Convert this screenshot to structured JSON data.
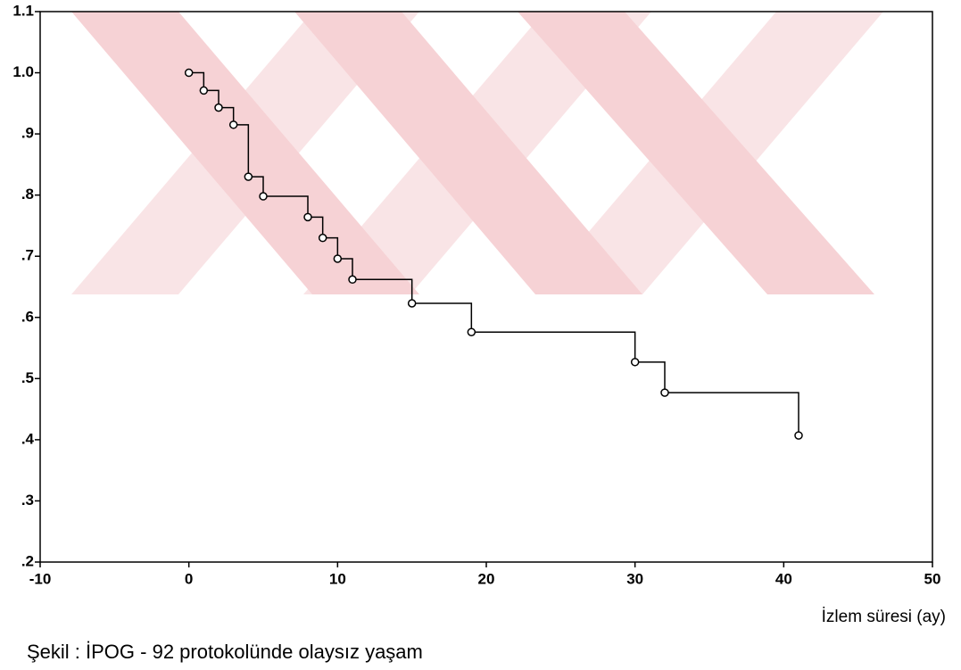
{
  "chart_data": {
    "type": "step",
    "x_label": "İzlem süresi (ay)",
    "caption": "Şekil : İPOG - 92 protokolünde olaysız yaşam",
    "series": [
      {
        "color": "#000000",
        "x": [
          0,
          1,
          2,
          3,
          4,
          5,
          8,
          9,
          10,
          11,
          15,
          19,
          30,
          32,
          41
        ],
        "values": [
          1.0,
          0.971,
          0.943,
          0.915,
          0.83,
          0.798,
          0.764,
          0.73,
          0.696,
          0.662,
          0.623,
          0.576,
          0.527,
          0.477,
          0.407
        ]
      }
    ],
    "xlim": [
      -10,
      50
    ],
    "xticks": [
      -10,
      0,
      10,
      20,
      30,
      40,
      50
    ],
    "ylim": [
      0.2,
      1.1
    ],
    "yticks": [
      {
        "value": 0.2,
        "label": ".2"
      },
      {
        "value": 0.3,
        "label": ".3"
      },
      {
        "value": 0.4,
        "label": ".4"
      },
      {
        "value": 0.5,
        "label": ".5"
      },
      {
        "value": 0.6,
        "label": ".6"
      },
      {
        "value": 0.7,
        "label": ".7"
      },
      {
        "value": 0.8,
        "label": ".8"
      },
      {
        "value": 0.9,
        "label": ".9"
      },
      {
        "value": 1,
        "label": "1.0"
      },
      1.1
    ]
  }
}
